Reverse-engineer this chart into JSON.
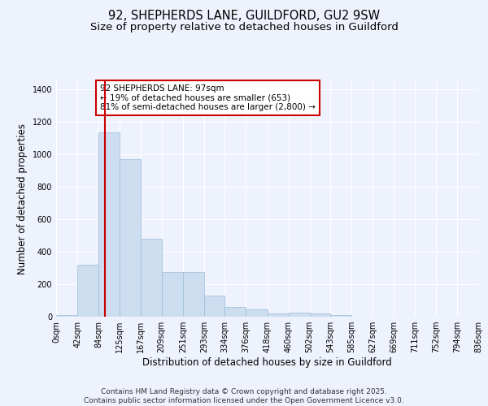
{
  "title_line1": "92, SHEPHERDS LANE, GUILDFORD, GU2 9SW",
  "title_line2": "Size of property relative to detached houses in Guildford",
  "xlabel": "Distribution of detached houses by size in Guildford",
  "ylabel": "Number of detached properties",
  "bar_color": "#ccddf0",
  "bar_edge_color": "#9bbdd8",
  "vline_color": "#cc0000",
  "vline_x": 97,
  "annotation_text": "92 SHEPHERDS LANE: 97sqm\n← 19% of detached houses are smaller (653)\n81% of semi-detached houses are larger (2,800) →",
  "annotation_box_color": "#ffffff",
  "annotation_box_edge": "#cc0000",
  "background_color": "#eef2fc",
  "grid_color": "#ffffff",
  "bin_edges": [
    0,
    42,
    84,
    125,
    167,
    209,
    251,
    293,
    334,
    376,
    418,
    460,
    502,
    543,
    585,
    627,
    669,
    711,
    752,
    794,
    836
  ],
  "bar_heights": [
    8,
    320,
    1135,
    970,
    480,
    275,
    275,
    130,
    60,
    45,
    20,
    25,
    20,
    10,
    0,
    0,
    0,
    0,
    0,
    0
  ],
  "ylim": [
    0,
    1450
  ],
  "yticks": [
    0,
    200,
    400,
    600,
    800,
    1000,
    1200,
    1400
  ],
  "footer_text": "Contains HM Land Registry data © Crown copyright and database right 2025.\nContains public sector information licensed under the Open Government Licence v3.0.",
  "title_fontsize": 10.5,
  "subtitle_fontsize": 9.5,
  "tick_fontsize": 7,
  "label_fontsize": 8.5,
  "footer_fontsize": 6.5
}
